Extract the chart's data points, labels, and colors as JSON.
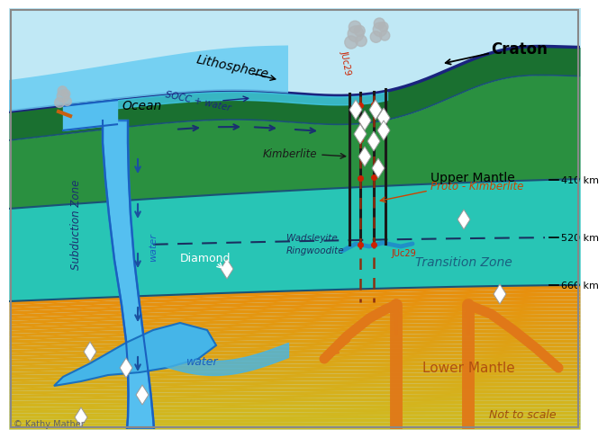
{
  "bg_sky": "#c0e8f5",
  "green_litho": "#1a7030",
  "green_mantle": "#2a9040",
  "teal_transition": "#25c0b0",
  "blue_ocean": "#60c8f0",
  "blue_subduct": "#50b8f0",
  "orange_lower": "#e89020",
  "craton_label": "Craton",
  "lithosphere_label": "Lithosphere",
  "ocean_label": "Ocean",
  "subduction_label": "Subduction Zone",
  "upper_mantle_label": "Upper Mantle",
  "transition_zone_label": "Transition Zone",
  "lower_mantle_label": "Lower Mantle",
  "diamond_label": "Diamond",
  "wadsleyite_label": "Wadsleyite\nRingwoodite",
  "kimberlite_label": "Kimberlite",
  "proto_kimberlite_label": "Proto - Kimberlite",
  "water_label": "water",
  "socc_label": "SOCC + water",
  "not_to_scale": "Not to scale",
  "credit": "© Kathy Mather",
  "km410": "410 km",
  "km520": "520 km",
  "km660": "660 km",
  "juc29_label": "JUc29"
}
